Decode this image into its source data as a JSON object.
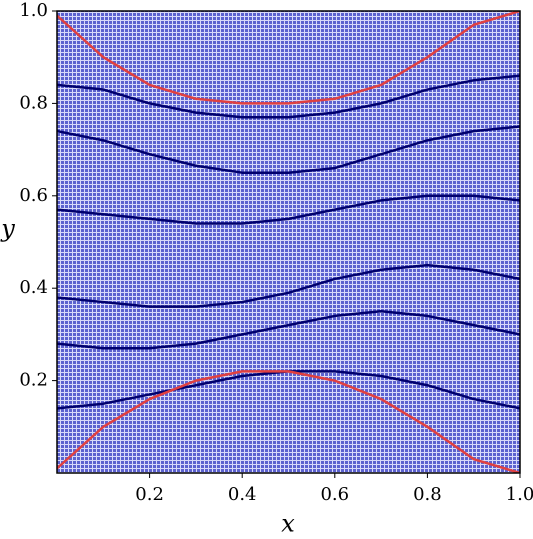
{
  "chart_data": {
    "type": "line",
    "x_label": "x",
    "y_label": "y",
    "x": [
      0,
      0.1,
      0.2,
      0.3,
      0.4,
      0.5,
      0.6,
      0.7,
      0.8,
      0.9,
      1.0
    ],
    "series": [
      {
        "color": "#e04040",
        "values": [
          0.99,
          0.9,
          0.84,
          0.81,
          0.8,
          0.8,
          0.81,
          0.84,
          0.9,
          0.97,
          1.0
        ]
      },
      {
        "color": "#00006e",
        "values": [
          0.84,
          0.83,
          0.8,
          0.78,
          0.77,
          0.77,
          0.78,
          0.8,
          0.83,
          0.85,
          0.86
        ]
      },
      {
        "color": "#00006e",
        "values": [
          0.74,
          0.72,
          0.69,
          0.665,
          0.65,
          0.65,
          0.66,
          0.69,
          0.72,
          0.74,
          0.75
        ]
      },
      {
        "color": "#00006e",
        "values": [
          0.57,
          0.56,
          0.55,
          0.54,
          0.54,
          0.55,
          0.57,
          0.59,
          0.6,
          0.6,
          0.59
        ]
      },
      {
        "color": "#00006e",
        "values": [
          0.38,
          0.37,
          0.36,
          0.36,
          0.37,
          0.39,
          0.42,
          0.44,
          0.45,
          0.44,
          0.42
        ]
      },
      {
        "color": "#00006e",
        "values": [
          0.28,
          0.27,
          0.27,
          0.28,
          0.3,
          0.32,
          0.34,
          0.35,
          0.34,
          0.32,
          0.3
        ]
      },
      {
        "color": "#00006e",
        "values": [
          0.14,
          0.15,
          0.17,
          0.19,
          0.21,
          0.22,
          0.22,
          0.21,
          0.19,
          0.16,
          0.14
        ]
      },
      {
        "color": "#e04040",
        "values": [
          0.01,
          0.1,
          0.16,
          0.2,
          0.22,
          0.22,
          0.2,
          0.16,
          0.1,
          0.03,
          0.0
        ]
      }
    ],
    "xlim": [
      0,
      1
    ],
    "ylim": [
      0,
      1
    ],
    "xticks": [
      0.2,
      0.4,
      0.6,
      0.8,
      {
        "value": 1,
        "label": "1.0"
      }
    ],
    "yticks": [
      0.2,
      0.4,
      0.6,
      0.8,
      {
        "value": 1,
        "label": "1.0"
      }
    ],
    "grid": false
  }
}
